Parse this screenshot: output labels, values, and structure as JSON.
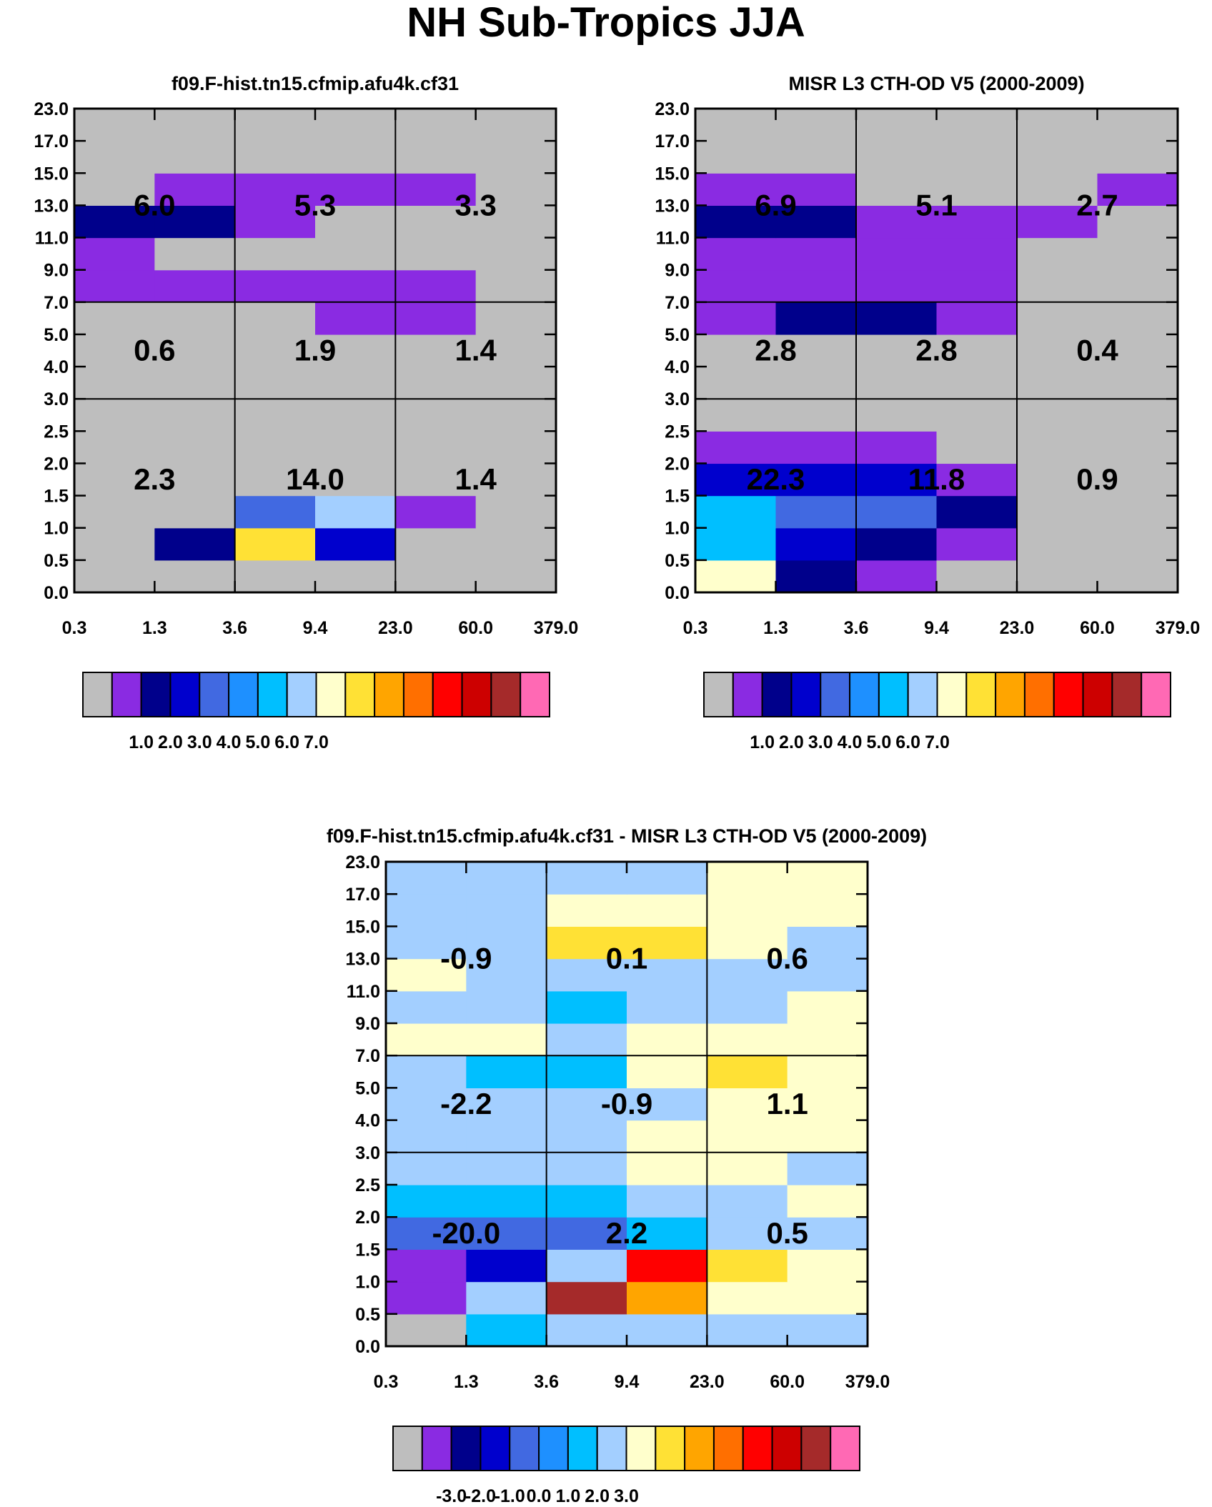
{
  "title": "NH Sub-Tropics JJA",
  "chart_data": [
    {
      "type": "heatmap",
      "title": "f09.F-hist.tn15.cfmip.afu4k.cf31",
      "x_edges": [
        "0.3",
        "1.3",
        "3.6",
        "9.4",
        "23.0",
        "60.0",
        "379.0"
      ],
      "y_edges": [
        "0.0",
        "0.5",
        "1.0",
        "1.5",
        "2.0",
        "2.5",
        "3.0",
        "4.0",
        "5.0",
        "7.0",
        "9.0",
        "11.0",
        "13.0",
        "15.0",
        "17.0",
        "23.0"
      ],
      "cell_colors_bottom_to_top": [
        [
          "#BEBEBE",
          "#BEBEBE",
          "#BEBEBE",
          "#BEBEBE",
          "#BEBEBE",
          "#BEBEBE"
        ],
        [
          "#BEBEBE",
          "#00008B",
          "#FFE135",
          "#0000CD",
          "#BEBEBE",
          "#BEBEBE"
        ],
        [
          "#BEBEBE",
          "#BEBEBE",
          "#4169E1",
          "#A3CFFF",
          "#8A2BE2",
          "#BEBEBE"
        ],
        [
          "#BEBEBE",
          "#BEBEBE",
          "#BEBEBE",
          "#BEBEBE",
          "#BEBEBE",
          "#BEBEBE"
        ],
        [
          "#BEBEBE",
          "#BEBEBE",
          "#BEBEBE",
          "#BEBEBE",
          "#BEBEBE",
          "#BEBEBE"
        ],
        [
          "#BEBEBE",
          "#BEBEBE",
          "#BEBEBE",
          "#BEBEBE",
          "#BEBEBE",
          "#BEBEBE"
        ],
        [
          "#BEBEBE",
          "#BEBEBE",
          "#BEBEBE",
          "#BEBEBE",
          "#BEBEBE",
          "#BEBEBE"
        ],
        [
          "#BEBEBE",
          "#BEBEBE",
          "#BEBEBE",
          "#BEBEBE",
          "#BEBEBE",
          "#BEBEBE"
        ],
        [
          "#BEBEBE",
          "#BEBEBE",
          "#BEBEBE",
          "#8A2BE2",
          "#8A2BE2",
          "#BEBEBE"
        ],
        [
          "#8A2BE2",
          "#8A2BE2",
          "#8A2BE2",
          "#8A2BE2",
          "#8A2BE2",
          "#BEBEBE"
        ],
        [
          "#8A2BE2",
          "#BEBEBE",
          "#BEBEBE",
          "#BEBEBE",
          "#BEBEBE",
          "#BEBEBE"
        ],
        [
          "#00008B",
          "#00008B",
          "#8A2BE2",
          "#BEBEBE",
          "#BEBEBE",
          "#BEBEBE"
        ],
        [
          "#BEBEBE",
          "#8A2BE2",
          "#8A2BE2",
          "#8A2BE2",
          "#8A2BE2",
          "#BEBEBE"
        ],
        [
          "#BEBEBE",
          "#BEBEBE",
          "#BEBEBE",
          "#BEBEBE",
          "#BEBEBE",
          "#BEBEBE"
        ],
        [
          "#BEBEBE",
          "#BEBEBE",
          "#BEBEBE",
          "#BEBEBE",
          "#BEBEBE",
          "#BEBEBE"
        ]
      ],
      "region_labels": [
        {
          "row": "high",
          "col": "left",
          "value": "6.0"
        },
        {
          "row": "high",
          "col": "mid",
          "value": "5.3"
        },
        {
          "row": "high",
          "col": "right",
          "value": "3.3"
        },
        {
          "row": "mid",
          "col": "left",
          "value": "0.6"
        },
        {
          "row": "mid",
          "col": "mid",
          "value": "1.9"
        },
        {
          "row": "mid",
          "col": "right",
          "value": "1.4"
        },
        {
          "row": "low",
          "col": "left",
          "value": "2.3"
        },
        {
          "row": "low",
          "col": "mid",
          "value": "14.0"
        },
        {
          "row": "low",
          "col": "right",
          "value": "1.4"
        }
      ],
      "colorbar": {
        "colors": [
          "#BEBEBE",
          "#8A2BE2",
          "#00008B",
          "#0000CD",
          "#4169E1",
          "#1E90FF",
          "#00BFFF",
          "#A3CFFF",
          "#FFFFCC",
          "#FFE135",
          "#FFA500",
          "#FF6F00",
          "#FF0000",
          "#CD0000",
          "#A52A2A",
          "#FF69B4"
        ],
        "tick_labels": [
          "1.0",
          "2.0",
          "3.0",
          "4.0",
          "5.0",
          "6.0",
          "7.0"
        ]
      }
    },
    {
      "type": "heatmap",
      "title": "MISR L3 CTH-OD V5 (2000-2009)",
      "x_edges": [
        "0.3",
        "1.3",
        "3.6",
        "9.4",
        "23.0",
        "60.0",
        "379.0"
      ],
      "y_edges": [
        "0.0",
        "0.5",
        "1.0",
        "1.5",
        "2.0",
        "2.5",
        "3.0",
        "4.0",
        "5.0",
        "7.0",
        "9.0",
        "11.0",
        "13.0",
        "15.0",
        "17.0",
        "23.0"
      ],
      "cell_colors_bottom_to_top": [
        [
          "#FFFFCC",
          "#00008B",
          "#8A2BE2",
          "#BEBEBE",
          "#BEBEBE",
          "#BEBEBE"
        ],
        [
          "#00BFFF",
          "#0000CD",
          "#00008B",
          "#8A2BE2",
          "#BEBEBE",
          "#BEBEBE"
        ],
        [
          "#00BFFF",
          "#4169E1",
          "#4169E1",
          "#00008B",
          "#BEBEBE",
          "#BEBEBE"
        ],
        [
          "#0000CD",
          "#0000CD",
          "#0000CD",
          "#8A2BE2",
          "#BEBEBE",
          "#BEBEBE"
        ],
        [
          "#8A2BE2",
          "#8A2BE2",
          "#8A2BE2",
          "#BEBEBE",
          "#BEBEBE",
          "#BEBEBE"
        ],
        [
          "#BEBEBE",
          "#BEBEBE",
          "#BEBEBE",
          "#BEBEBE",
          "#BEBEBE",
          "#BEBEBE"
        ],
        [
          "#BEBEBE",
          "#BEBEBE",
          "#BEBEBE",
          "#BEBEBE",
          "#BEBEBE",
          "#BEBEBE"
        ],
        [
          "#BEBEBE",
          "#BEBEBE",
          "#BEBEBE",
          "#BEBEBE",
          "#BEBEBE",
          "#BEBEBE"
        ],
        [
          "#8A2BE2",
          "#00008B",
          "#00008B",
          "#8A2BE2",
          "#BEBEBE",
          "#BEBEBE"
        ],
        [
          "#8A2BE2",
          "#8A2BE2",
          "#8A2BE2",
          "#8A2BE2",
          "#BEBEBE",
          "#BEBEBE"
        ],
        [
          "#8A2BE2",
          "#8A2BE2",
          "#8A2BE2",
          "#8A2BE2",
          "#BEBEBE",
          "#BEBEBE"
        ],
        [
          "#00008B",
          "#00008B",
          "#8A2BE2",
          "#8A2BE2",
          "#8A2BE2",
          "#BEBEBE"
        ],
        [
          "#8A2BE2",
          "#8A2BE2",
          "#BEBEBE",
          "#BEBEBE",
          "#BEBEBE",
          "#8A2BE2"
        ],
        [
          "#BEBEBE",
          "#BEBEBE",
          "#BEBEBE",
          "#BEBEBE",
          "#BEBEBE",
          "#BEBEBE"
        ],
        [
          "#BEBEBE",
          "#BEBEBE",
          "#BEBEBE",
          "#BEBEBE",
          "#BEBEBE",
          "#BEBEBE"
        ]
      ],
      "region_labels": [
        {
          "row": "high",
          "col": "left",
          "value": "6.9"
        },
        {
          "row": "high",
          "col": "mid",
          "value": "5.1"
        },
        {
          "row": "high",
          "col": "right",
          "value": "2.7"
        },
        {
          "row": "mid",
          "col": "left",
          "value": "2.8"
        },
        {
          "row": "mid",
          "col": "mid",
          "value": "2.8"
        },
        {
          "row": "mid",
          "col": "right",
          "value": "0.4"
        },
        {
          "row": "low",
          "col": "left",
          "value": "22.3"
        },
        {
          "row": "low",
          "col": "mid",
          "value": "11.8"
        },
        {
          "row": "low",
          "col": "right",
          "value": "0.9"
        }
      ],
      "colorbar": {
        "colors": [
          "#BEBEBE",
          "#8A2BE2",
          "#00008B",
          "#0000CD",
          "#4169E1",
          "#1E90FF",
          "#00BFFF",
          "#A3CFFF",
          "#FFFFCC",
          "#FFE135",
          "#FFA500",
          "#FF6F00",
          "#FF0000",
          "#CD0000",
          "#A52A2A",
          "#FF69B4"
        ],
        "tick_labels": [
          "1.0",
          "2.0",
          "3.0",
          "4.0",
          "5.0",
          "6.0",
          "7.0"
        ]
      }
    },
    {
      "type": "heatmap",
      "title": "f09.F-hist.tn15.cfmip.afu4k.cf31 - MISR L3 CTH-OD V5 (2000-2009)",
      "x_edges": [
        "0.3",
        "1.3",
        "3.6",
        "9.4",
        "23.0",
        "60.0",
        "379.0"
      ],
      "y_edges": [
        "0.0",
        "0.5",
        "1.0",
        "1.5",
        "2.0",
        "2.5",
        "3.0",
        "4.0",
        "5.0",
        "7.0",
        "9.0",
        "11.0",
        "13.0",
        "15.0",
        "17.0",
        "23.0"
      ],
      "cell_colors_bottom_to_top": [
        [
          "#BEBEBE",
          "#00BFFF",
          "#A3CFFF",
          "#A3CFFF",
          "#A3CFFF",
          "#A3CFFF"
        ],
        [
          "#8A2BE2",
          "#A3CFFF",
          "#A52A2A",
          "#FFA500",
          "#FFFFCC",
          "#FFFFCC"
        ],
        [
          "#8A2BE2",
          "#0000CD",
          "#A3CFFF",
          "#FF0000",
          "#FFE135",
          "#FFFFCC"
        ],
        [
          "#4169E1",
          "#4169E1",
          "#4169E1",
          "#00BFFF",
          "#A3CFFF",
          "#A3CFFF"
        ],
        [
          "#00BFFF",
          "#00BFFF",
          "#00BFFF",
          "#A3CFFF",
          "#A3CFFF",
          "#FFFFCC"
        ],
        [
          "#A3CFFF",
          "#A3CFFF",
          "#A3CFFF",
          "#FFFFCC",
          "#FFFFCC",
          "#A3CFFF"
        ],
        [
          "#A3CFFF",
          "#A3CFFF",
          "#A3CFFF",
          "#FFFFCC",
          "#FFFFCC",
          "#FFFFCC"
        ],
        [
          "#A3CFFF",
          "#A3CFFF",
          "#A3CFFF",
          "#A3CFFF",
          "#FFFFCC",
          "#FFFFCC"
        ],
        [
          "#A3CFFF",
          "#00BFFF",
          "#00BFFF",
          "#FFFFCC",
          "#FFE135",
          "#FFFFCC"
        ],
        [
          "#FFFFCC",
          "#FFFFCC",
          "#A3CFFF",
          "#FFFFCC",
          "#FFFFCC",
          "#FFFFCC"
        ],
        [
          "#A3CFFF",
          "#A3CFFF",
          "#00BFFF",
          "#A3CFFF",
          "#A3CFFF",
          "#FFFFCC"
        ],
        [
          "#FFFFCC",
          "#A3CFFF",
          "#A3CFFF",
          "#A3CFFF",
          "#A3CFFF",
          "#A3CFFF"
        ],
        [
          "#A3CFFF",
          "#A3CFFF",
          "#FFE135",
          "#FFE135",
          "#FFFFCC",
          "#A3CFFF"
        ],
        [
          "#A3CFFF",
          "#A3CFFF",
          "#FFFFCC",
          "#FFFFCC",
          "#FFFFCC",
          "#FFFFCC"
        ],
        [
          "#A3CFFF",
          "#A3CFFF",
          "#A3CFFF",
          "#A3CFFF",
          "#FFFFCC",
          "#FFFFCC"
        ]
      ],
      "region_labels": [
        {
          "row": "high",
          "col": "left",
          "value": "-0.9"
        },
        {
          "row": "high",
          "col": "mid",
          "value": "0.1"
        },
        {
          "row": "high",
          "col": "right",
          "value": "0.6"
        },
        {
          "row": "mid",
          "col": "left",
          "value": "-2.2"
        },
        {
          "row": "mid",
          "col": "mid",
          "value": "-0.9"
        },
        {
          "row": "mid",
          "col": "right",
          "value": "1.1"
        },
        {
          "row": "low",
          "col": "left",
          "value": "-20.0"
        },
        {
          "row": "low",
          "col": "mid",
          "value": "2.2"
        },
        {
          "row": "low",
          "col": "right",
          "value": "0.5"
        }
      ],
      "colorbar": {
        "colors": [
          "#BEBEBE",
          "#8A2BE2",
          "#00008B",
          "#0000CD",
          "#4169E1",
          "#1E90FF",
          "#00BFFF",
          "#A3CFFF",
          "#FFFFCC",
          "#FFE135",
          "#FFA500",
          "#FF6F00",
          "#FF0000",
          "#CD0000",
          "#A52A2A",
          "#FF69B4"
        ],
        "tick_labels": [
          "-3.0",
          "-2.0",
          "-1.0",
          "0.0",
          "1.0",
          "2.0",
          "3.0"
        ]
      }
    }
  ]
}
